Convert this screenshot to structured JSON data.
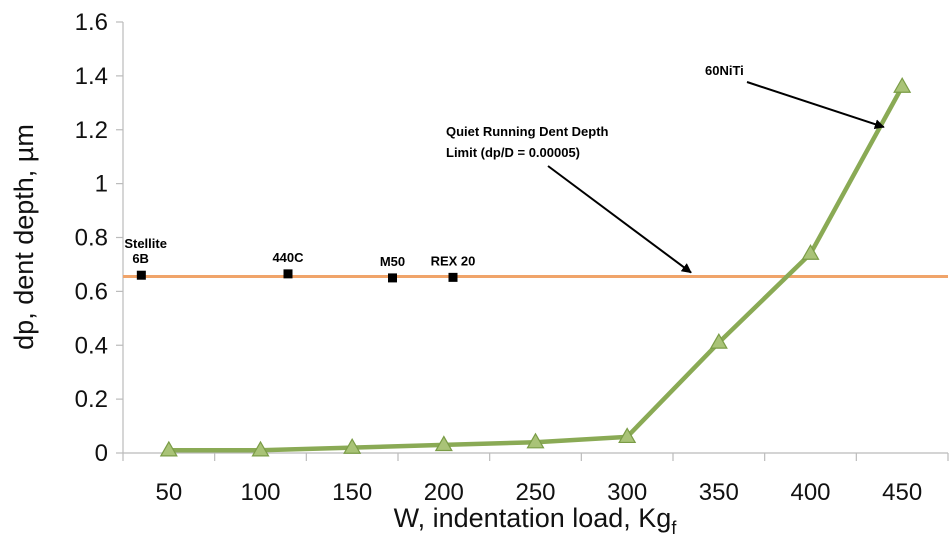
{
  "chart_data": {
    "type": "line",
    "title": "",
    "xlabel": "W, indentation load, Kg",
    "xlabel_subscript": "f",
    "ylabel": "dp, dent depth, µm",
    "x_ticks": [
      "50",
      "100",
      "150",
      "200",
      "250",
      "300",
      "350",
      "400",
      "450"
    ],
    "y_ticks": [
      "0",
      "0.2",
      "0.4",
      "0.6",
      "0.8",
      "1",
      "1.2",
      "1.4",
      "1.6"
    ],
    "xlim": [
      25,
      475
    ],
    "ylim": [
      0,
      1.6
    ],
    "grid": false,
    "legend": "none",
    "series": [
      {
        "marker": "triangle",
        "color": "#8aaa55",
        "x": [
          50,
          100,
          150,
          200,
          250,
          300,
          350,
          400,
          450
        ],
        "y": [
          0.01,
          0.01,
          0.02,
          0.03,
          0.04,
          0.06,
          0.41,
          0.74,
          1.36
        ]
      }
    ],
    "reference_line": {
      "y": 0.655,
      "color": "#f0a46a",
      "label_lines": [
        "Quiet Running Dent Depth",
        "Limit (dp/D = 0.00005)"
      ]
    },
    "material_points": [
      {
        "label_lines": [
          "Stellite",
          "6B"
        ],
        "x": 35,
        "y": 0.66
      },
      {
        "label_lines": [
          "440C"
        ],
        "x": 115,
        "y": 0.665
      },
      {
        "label_lines": [
          "M50"
        ],
        "x": 172,
        "y": 0.65
      },
      {
        "label_lines": [
          "REX 20"
        ],
        "x": 205,
        "y": 0.652
      }
    ],
    "series_annotation": {
      "label": "60NiTi",
      "arrow_target": {
        "x": 440,
        "y": 1.21
      }
    },
    "colors": {
      "axis": "#bbbbbb",
      "text": "#111111",
      "marker_edge": "#7a9c46",
      "marker_fill": "#a9c377",
      "point_marker": "#000000"
    }
  }
}
